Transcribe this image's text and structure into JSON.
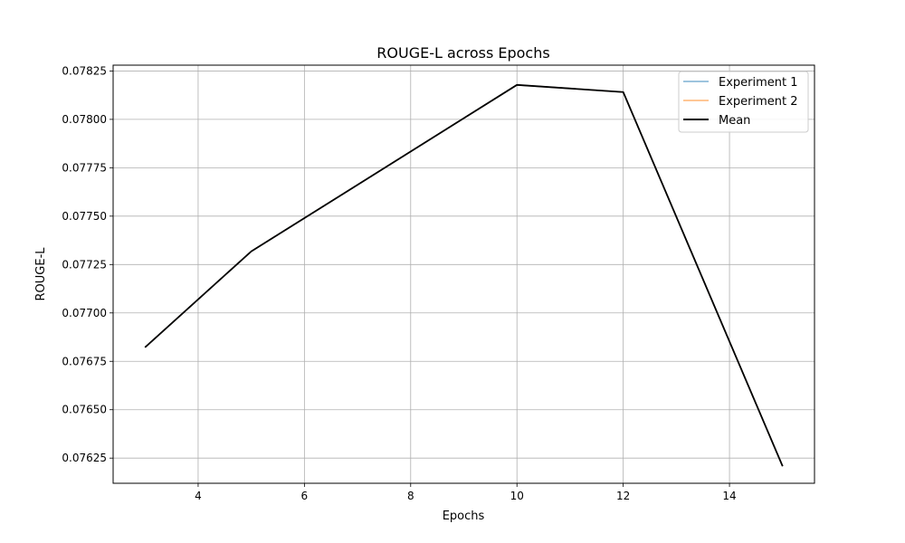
{
  "chart_data": {
    "type": "line",
    "title": "ROUGE-L across Epochs",
    "xlabel": "Epochs",
    "ylabel": "ROUGE-L",
    "xlim": [
      2.4,
      15.6
    ],
    "ylim": [
      0.07612,
      0.07828
    ],
    "x_ticks": [
      4,
      6,
      8,
      10,
      12,
      14
    ],
    "x_tick_labels": [
      "4",
      "6",
      "8",
      "10",
      "12",
      "14"
    ],
    "y_ticks": [
      0.07625,
      0.0765,
      0.07675,
      0.077,
      0.07725,
      0.0775,
      0.07775,
      0.078,
      0.07825
    ],
    "y_tick_labels": [
      "0.07625",
      "0.07650",
      "0.07675",
      "0.07700",
      "0.07725",
      "0.07750",
      "0.07775",
      "0.07800",
      "0.07825"
    ],
    "grid": true,
    "legend_position": "top-right",
    "x": [
      3,
      5,
      10,
      12,
      15
    ],
    "series": [
      {
        "name": "Experiment 1",
        "color": "#1f77b4",
        "opacity": 0.5,
        "width": 1.5,
        "values": [
          0.076822,
          0.077318,
          0.078178,
          0.078141,
          0.076208
        ]
      },
      {
        "name": "Experiment 2",
        "color": "#ff7f0e",
        "opacity": 0.5,
        "width": 1.5,
        "values": [
          0.076822,
          0.077318,
          0.078178,
          0.078141,
          0.076208
        ]
      },
      {
        "name": "Mean",
        "color": "#000000",
        "opacity": 1,
        "width": 1.8,
        "values": [
          0.076822,
          0.077318,
          0.078178,
          0.078141,
          0.076208
        ]
      }
    ]
  }
}
